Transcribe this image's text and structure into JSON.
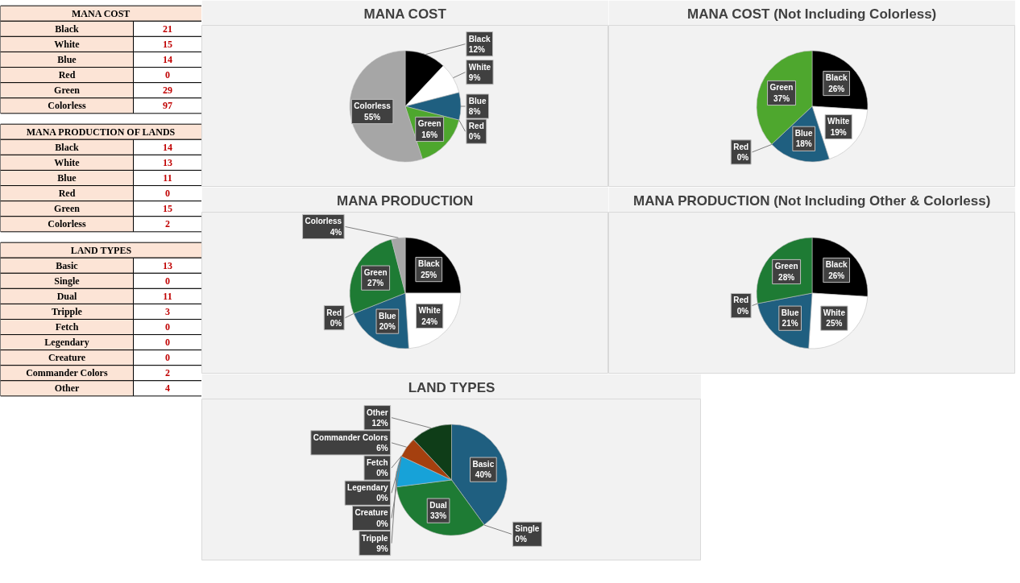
{
  "chart_data": [
    {
      "type": "other",
      "title": "MANA COST",
      "categories": [
        "Black",
        "White",
        "Blue",
        "Red",
        "Green",
        "Colorless"
      ],
      "values": [
        21,
        15,
        14,
        0,
        29,
        97
      ],
      "data_labels": true
    },
    {
      "type": "other",
      "title": "MANA PRODUCTION OF LANDS",
      "categories": [
        "Black",
        "White",
        "Blue",
        "Red",
        "Green",
        "Colorless"
      ],
      "values": [
        14,
        13,
        11,
        0,
        15,
        2
      ],
      "data_labels": true
    },
    {
      "type": "other",
      "title": "LAND TYPES",
      "categories": [
        "Basic",
        "Single",
        "Dual",
        "Tripple",
        "Fetch",
        "Legendary",
        "Creature",
        "Commander Colors",
        "Other"
      ],
      "values": [
        13,
        0,
        11,
        3,
        0,
        0,
        0,
        2,
        4
      ],
      "data_labels": true
    },
    {
      "type": "pie",
      "title": "MANA COST",
      "categories": [
        "Black",
        "White",
        "Blue",
        "Red",
        "Green",
        "Colorless"
      ],
      "values": [
        12,
        9,
        8,
        0,
        16,
        55
      ],
      "colors": [
        "#000000",
        "#ffffff",
        "#1f5f80",
        "#c00000",
        "#4ea72e",
        "#a6a6a6"
      ],
      "value_labels": [
        "12%",
        "9%",
        "8%",
        "0%",
        "16%",
        "55%"
      ]
    },
    {
      "type": "pie",
      "title": "MANA COST (Not Including Colorless)",
      "categories": [
        "Black",
        "White",
        "Blue",
        "Red",
        "Green"
      ],
      "values": [
        26,
        19,
        18,
        0,
        37
      ],
      "colors": [
        "#000000",
        "#ffffff",
        "#1f5f80",
        "#c00000",
        "#4ea72e"
      ],
      "value_labels": [
        "26%",
        "19%",
        "18%",
        "0%",
        "37%"
      ]
    },
    {
      "type": "pie",
      "title": "MANA PRODUCTION",
      "categories": [
        "Black",
        "White",
        "Blue",
        "Red",
        "Green",
        "Colorless"
      ],
      "values": [
        25,
        24,
        20,
        0,
        27,
        4
      ],
      "colors": [
        "#000000",
        "#ffffff",
        "#1f5f80",
        "#c00000",
        "#1e7b34",
        "#a6a6a6"
      ],
      "value_labels": [
        "25%",
        "24%",
        "20%",
        "0%",
        "27%",
        "4%"
      ]
    },
    {
      "type": "pie",
      "title": "MANA PRODUCTION (Not Including Other & Colorless)",
      "categories": [
        "Black",
        "White",
        "Blue",
        "Red",
        "Green"
      ],
      "values": [
        26,
        25,
        21,
        0,
        28
      ],
      "colors": [
        "#000000",
        "#ffffff",
        "#1f5f80",
        "#c00000",
        "#1e7b34"
      ],
      "value_labels": [
        "26%",
        "25%",
        "21%",
        "0%",
        "28%"
      ]
    },
    {
      "type": "pie",
      "title": "LAND TYPES",
      "categories": [
        "Basic",
        "Single",
        "Dual",
        "Tripple",
        "Fetch",
        "Legendary",
        "Creature",
        "Commander Colors",
        "Other"
      ],
      "values": [
        40,
        0,
        33,
        9,
        0,
        0,
        0,
        6,
        12
      ],
      "colors": [
        "#1f5f80",
        "#c00000",
        "#1e7b34",
        "#17a2d8",
        "#7f7f7f",
        "#7030a0",
        "#ffc000",
        "#a5400f",
        "#0f3d18"
      ],
      "value_labels": [
        "40%",
        "0%",
        "33%",
        "9%",
        "0%",
        "0%",
        "0%",
        "6%",
        "12%"
      ]
    }
  ]
}
